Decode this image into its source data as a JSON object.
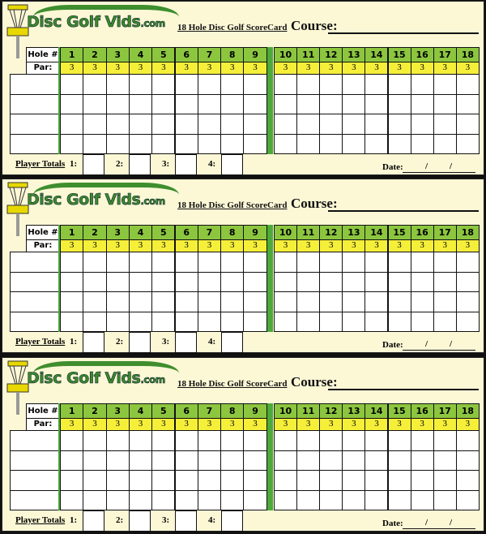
{
  "card": {
    "logo": "Disc Golf Vids",
    "logo_suffix": ".com",
    "subtitle": "18 Hole Disc Golf ScoreCard",
    "course_label": "Course:",
    "hole_label": "Hole #",
    "par_label": "Par:",
    "holes": [
      "1",
      "2",
      "3",
      "4",
      "5",
      "6",
      "7",
      "8",
      "9",
      "10",
      "11",
      "12",
      "13",
      "14",
      "15",
      "16",
      "17",
      "18"
    ],
    "pars": [
      "3",
      "3",
      "3",
      "3",
      "3",
      "3",
      "3",
      "3",
      "3",
      "3",
      "3",
      "3",
      "3",
      "3",
      "3",
      "3",
      "3",
      "3"
    ],
    "player_totals_label": "Player Totals",
    "player_labels": [
      "1:",
      "2:",
      "3:",
      "4:"
    ],
    "date_label": "Date:",
    "date_separator": "/"
  },
  "card_count": 3,
  "colors": {
    "hole_row": "#8cc63f",
    "par_row": "#f5ef3a",
    "background": "#fcf8d6",
    "divider": "#4caa3a"
  }
}
